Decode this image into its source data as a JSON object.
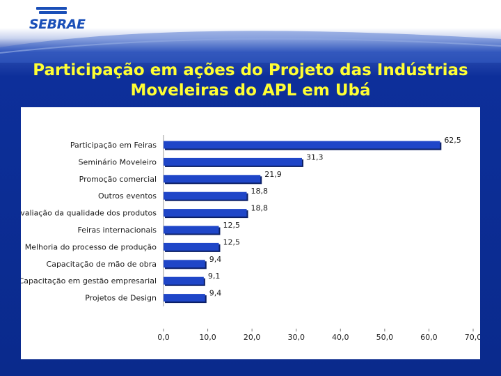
{
  "brand": {
    "logo_text": "SEBRAE"
  },
  "slide": {
    "title_line1": "Participação em ações do Projeto das Indústrias",
    "title_line2": "Moveleiras do APL em Ubá"
  },
  "colors": {
    "bar": "#1f46c8",
    "bar_shadow": "#0b1f66",
    "title": "#ffff33",
    "background": "#0a2a8c"
  },
  "chart_data": {
    "type": "bar",
    "orientation": "horizontal",
    "categories": [
      "Participação em Feiras",
      "Seminário Moveleiro",
      "Promoção comercial",
      "Outros eventos",
      "Avaliação da qualidade dos produtos",
      "Feiras internacionais",
      "Melhoria do processo de produção",
      "Capacitação de mão de obra",
      "Capacitação em gestão empresarial",
      "Projetos de Design"
    ],
    "values": [
      62.5,
      31.3,
      21.9,
      18.8,
      18.8,
      12.5,
      12.5,
      9.4,
      9.1,
      9.4
    ],
    "value_labels": [
      "62,5",
      "31,3",
      "21,9",
      "18,8",
      "18,8",
      "12,5",
      "12,5",
      "9,4",
      "9,1",
      "9,4"
    ],
    "xlim": [
      0,
      70
    ],
    "xticks": [
      0,
      10,
      20,
      30,
      40,
      50,
      60,
      70
    ],
    "xtick_labels": [
      "0,0",
      "10,0",
      "20,0",
      "30,0",
      "40,0",
      "50,0",
      "60,0",
      "70,0"
    ],
    "title": "",
    "xlabel": "",
    "ylabel": "",
    "grid": false,
    "legend": "none"
  }
}
